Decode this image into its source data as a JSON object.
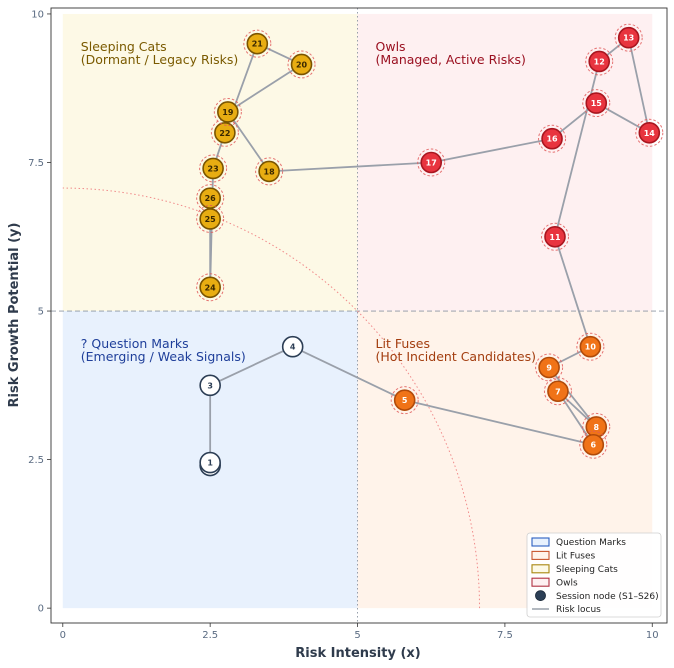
{
  "chart_data": {
    "type": "scatter",
    "xlabel": "Risk Intensity (x)",
    "ylabel": "Risk Growth Potential (y)",
    "xlim": [
      -0.2,
      10.25
    ],
    "ylim": [
      -0.25,
      10.1
    ],
    "x_ticks": [
      0,
      2.5,
      5,
      7.5,
      10
    ],
    "y_ticks": [
      0,
      2.5,
      5,
      7.5,
      10
    ],
    "x_tick_labels": [
      "0",
      "2.5",
      "5",
      "7.5",
      "10"
    ],
    "y_tick_labels": [
      "0",
      "2.5",
      "5",
      "7.5",
      "10"
    ],
    "threshold": {
      "x": 5,
      "y": 5
    },
    "risk_frontier_radius": 7.07,
    "quadrants": [
      {
        "key": "question_marks",
        "name": "Question Marks",
        "title": "? Question Marks",
        "subtitle": "(Emerging / Weak Signals)",
        "x_range": [
          0,
          5
        ],
        "y_range": [
          0,
          5
        ],
        "fill": "#e8f1fd",
        "edge": "#2b5fc0",
        "text_color": "#1f3f9a"
      },
      {
        "key": "lit_fuses",
        "name": "Lit Fuses",
        "title": "Lit Fuses",
        "subtitle": "(Hot Incident Candidates)",
        "x_range": [
          5,
          10
        ],
        "y_range": [
          0,
          5
        ],
        "fill": "#fff3ea",
        "edge": "#c8552c",
        "text_color": "#a33d0f"
      },
      {
        "key": "sleeping_cats",
        "name": "Sleeping Cats",
        "title": "Sleeping Cats",
        "subtitle": "(Dormant / Legacy Risks)",
        "x_range": [
          0,
          5
        ],
        "y_range": [
          5,
          10
        ],
        "fill": "#fdf9e6",
        "edge": "#a8870f",
        "text_color": "#7a5a00"
      },
      {
        "key": "owls",
        "name": "Owls",
        "title": "Owls",
        "subtitle": "(Managed, Active Risks)",
        "x_range": [
          5,
          10
        ],
        "y_range": [
          5,
          10
        ],
        "fill": "#fef0f1",
        "edge": "#b03040",
        "text_color": "#9a1020"
      }
    ],
    "nodes": [
      {
        "id": "1",
        "x": 2.5,
        "y": 2.45,
        "quadrant": "question_marks"
      },
      {
        "id": "2",
        "x": 2.5,
        "y": 2.4,
        "quadrant": "question_marks"
      },
      {
        "id": "3",
        "x": 2.5,
        "y": 3.75,
        "quadrant": "question_marks"
      },
      {
        "id": "4",
        "x": 3.9,
        "y": 4.4,
        "quadrant": "question_marks"
      },
      {
        "id": "5",
        "x": 5.8,
        "y": 3.5,
        "quadrant": "lit_fuses"
      },
      {
        "id": "6",
        "x": 9.0,
        "y": 2.75,
        "quadrant": "lit_fuses"
      },
      {
        "id": "7",
        "x": 8.4,
        "y": 3.65,
        "quadrant": "lit_fuses"
      },
      {
        "id": "8",
        "x": 9.05,
        "y": 3.05,
        "quadrant": "lit_fuses"
      },
      {
        "id": "9",
        "x": 8.25,
        "y": 4.05,
        "quadrant": "lit_fuses"
      },
      {
        "id": "10",
        "x": 8.95,
        "y": 4.4,
        "quadrant": "lit_fuses"
      },
      {
        "id": "11",
        "x": 8.35,
        "y": 6.25,
        "quadrant": "owls"
      },
      {
        "id": "12",
        "x": 9.1,
        "y": 9.2,
        "quadrant": "owls"
      },
      {
        "id": "13",
        "x": 9.6,
        "y": 9.6,
        "quadrant": "owls"
      },
      {
        "id": "14",
        "x": 9.95,
        "y": 8.0,
        "quadrant": "owls"
      },
      {
        "id": "15",
        "x": 9.05,
        "y": 8.5,
        "quadrant": "owls"
      },
      {
        "id": "16",
        "x": 8.3,
        "y": 7.9,
        "quadrant": "owls"
      },
      {
        "id": "17",
        "x": 6.25,
        "y": 7.5,
        "quadrant": "owls"
      },
      {
        "id": "18",
        "x": 3.5,
        "y": 7.35,
        "quadrant": "sleeping_cats"
      },
      {
        "id": "19",
        "x": 2.8,
        "y": 8.35,
        "quadrant": "sleeping_cats"
      },
      {
        "id": "20",
        "x": 4.05,
        "y": 9.15,
        "quadrant": "sleeping_cats"
      },
      {
        "id": "21",
        "x": 3.3,
        "y": 9.5,
        "quadrant": "sleeping_cats"
      },
      {
        "id": "22",
        "x": 2.75,
        "y": 8.0,
        "quadrant": "sleeping_cats"
      },
      {
        "id": "23",
        "x": 2.55,
        "y": 7.4,
        "quadrant": "sleeping_cats"
      },
      {
        "id": "24",
        "x": 2.5,
        "y": 5.4,
        "quadrant": "sleeping_cats"
      },
      {
        "id": "25",
        "x": 2.5,
        "y": 6.55,
        "quadrant": "sleeping_cats"
      },
      {
        "id": "26",
        "x": 2.5,
        "y": 6.9,
        "quadrant": "sleeping_cats"
      }
    ],
    "legend": {
      "position": "lower-right",
      "entries": [
        {
          "label": "Question Marks",
          "kind": "patch",
          "quadrant": "question_marks"
        },
        {
          "label": "Lit Fuses",
          "kind": "patch",
          "quadrant": "lit_fuses"
        },
        {
          "label": "Sleeping Cats",
          "kind": "patch",
          "quadrant": "sleeping_cats"
        },
        {
          "label": "Owls",
          "kind": "patch",
          "quadrant": "owls"
        },
        {
          "label": "Session node (S1–S26)",
          "kind": "marker"
        },
        {
          "label": "Risk locus",
          "kind": "line"
        }
      ]
    }
  },
  "colors": {
    "question_marks_node_fill": "#ffffff",
    "question_marks_node_edge": "#2c3e55",
    "question_marks_node_text": "#2c3e55",
    "lit_fuses_node_fill": "#f07318",
    "lit_fuses_node_edge": "#b04a0a",
    "sleeping_cats_node_fill": "#e8ad12",
    "sleeping_cats_node_edge": "#7a5400",
    "owls_node_fill": "#e8343f",
    "owls_node_edge": "#a8161f",
    "halo": "#e05a5a",
    "locus_line": "#9aa0aa",
    "threshold_line": "#8c96a3",
    "frontier_arc": "#f08a8a",
    "legend_marker": "#2c3e55"
  }
}
